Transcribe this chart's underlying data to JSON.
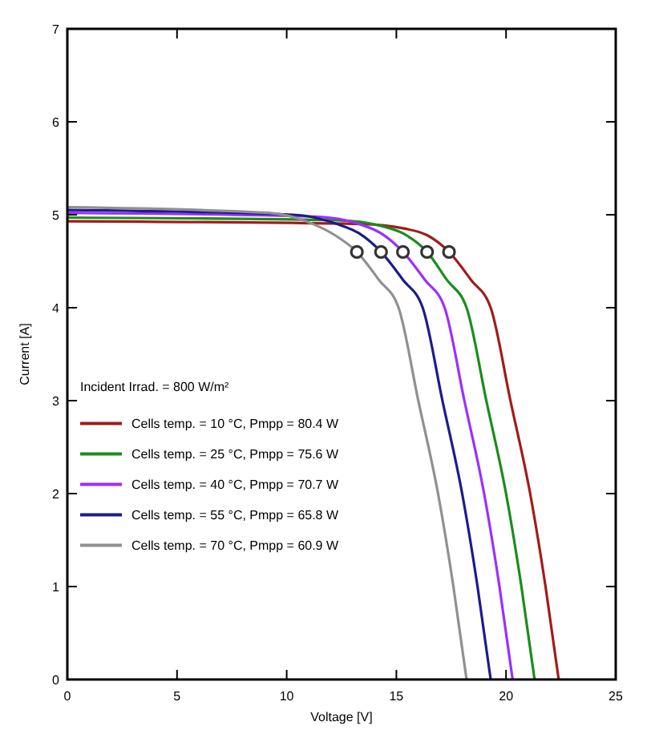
{
  "chart_data": {
    "type": "line",
    "xlabel": "Voltage [V]",
    "ylabel": "Current [A]",
    "legend_title": "Incident Irrad. = 800 W/m²",
    "xlim": [
      0,
      25
    ],
    "ylim": [
      0,
      7
    ],
    "xticks": [
      0,
      5,
      10,
      15,
      20,
      25
    ],
    "yticks": [
      0,
      1,
      2,
      3,
      4,
      5,
      6,
      7
    ],
    "grid": false,
    "legend": "left",
    "line_style": "solid",
    "series": [
      {
        "name": "Cells temp. = 10 °C,  Pmpp = 80.4 W",
        "color": "#a01c1c",
        "x": [
          0,
          13.4,
          15.4,
          16.4,
          17.4,
          18.4,
          19.3,
          20.2,
          21.1,
          21.8,
          22.4
        ],
        "values": [
          4.93,
          4.9,
          4.85,
          4.78,
          4.6,
          4.3,
          4.0,
          3.0,
          2.0,
          1.0,
          0
        ]
      },
      {
        "name": "Cells temp. = 25 °C,  Pmpp = 75.6 W",
        "color": "#1c8c1c",
        "x": [
          0,
          12.3,
          14.3,
          15.3,
          16.4,
          17.3,
          18.2,
          19.1,
          20.0,
          20.7,
          21.3
        ],
        "values": [
          4.97,
          4.94,
          4.88,
          4.8,
          4.6,
          4.3,
          4.0,
          3.0,
          2.0,
          1.0,
          0
        ]
      },
      {
        "name": "Cells temp. = 40 °C,  Pmpp = 70.7 W",
        "color": "#9a30ff",
        "x": [
          0,
          11.3,
          13.3,
          14.3,
          15.3,
          16.3,
          17.2,
          18.1,
          19.0,
          19.7,
          20.3
        ],
        "values": [
          5.02,
          4.98,
          4.9,
          4.8,
          4.6,
          4.3,
          4.0,
          3.0,
          2.0,
          1.0,
          0
        ]
      },
      {
        "name": "Cells temp. = 55 °C,  Pmpp = 65.8 W",
        "color": "#1c1c8c",
        "x": [
          0,
          10.3,
          12.3,
          13.3,
          14.3,
          15.3,
          16.2,
          17.1,
          18.0,
          18.7,
          19.3
        ],
        "values": [
          5.05,
          5.0,
          4.9,
          4.8,
          4.6,
          4.3,
          4.0,
          3.0,
          2.0,
          1.0,
          0
        ]
      },
      {
        "name": "Cells temp. = 70 °C,  Pmpp = 60.9 W",
        "color": "#909090",
        "x": [
          0,
          9.2,
          11.2,
          12.2,
          13.2,
          14.2,
          15.1,
          16.0,
          16.9,
          17.6,
          18.2
        ],
        "values": [
          5.08,
          5.02,
          4.9,
          4.78,
          4.6,
          4.3,
          4.0,
          3.0,
          2.0,
          1.0,
          0
        ]
      },
      {
        "type": "scatter",
        "marker": "circle",
        "color": "#333333",
        "x": [
          13.2,
          14.3,
          15.3,
          16.4,
          17.4
        ],
        "values": [
          4.6,
          4.6,
          4.6,
          4.6,
          4.6
        ]
      }
    ]
  }
}
